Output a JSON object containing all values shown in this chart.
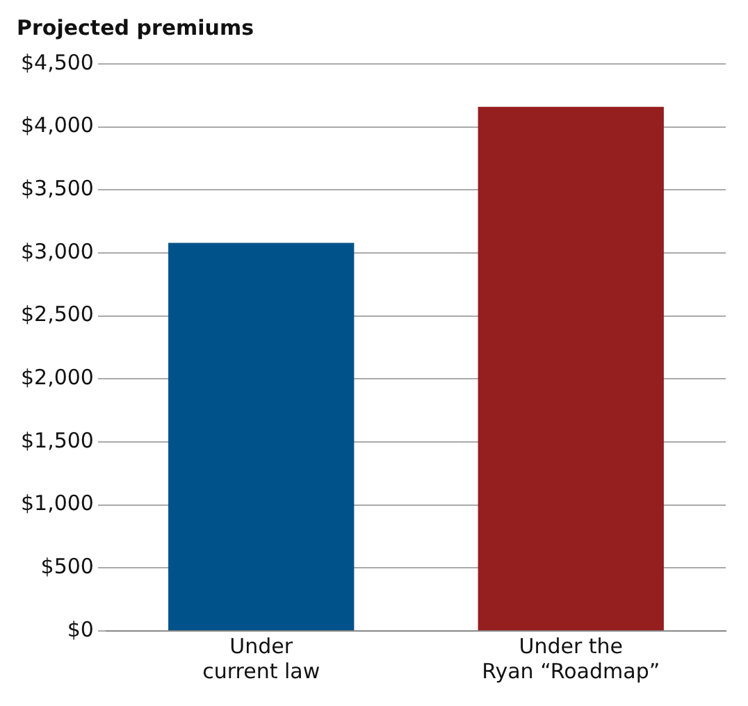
{
  "chart_data": {
    "type": "bar",
    "title": "Projected premiums",
    "categories": [
      "Under current law",
      "Under the Ryan “Roadmap”"
    ],
    "values": [
      3080,
      4160
    ],
    "colors": [
      "#00538a",
      "#951e1e"
    ],
    "ylim": [
      0,
      4500
    ],
    "yticks": [
      {
        "value": 0,
        "label": "$0"
      },
      {
        "value": 500,
        "label": "$500"
      },
      {
        "value": 1000,
        "label": "$1,000"
      },
      {
        "value": 1500,
        "label": "$1,500"
      },
      {
        "value": 2000,
        "label": "$2,000"
      },
      {
        "value": 2500,
        "label": "$2,500"
      },
      {
        "value": 3000,
        "label": "$3,000"
      },
      {
        "value": 3500,
        "label": "$3,500"
      },
      {
        "value": 4000,
        "label": "$4,000"
      },
      {
        "value": 4500,
        "label": "$4,500"
      }
    ],
    "grid": "y",
    "legend": false
  }
}
